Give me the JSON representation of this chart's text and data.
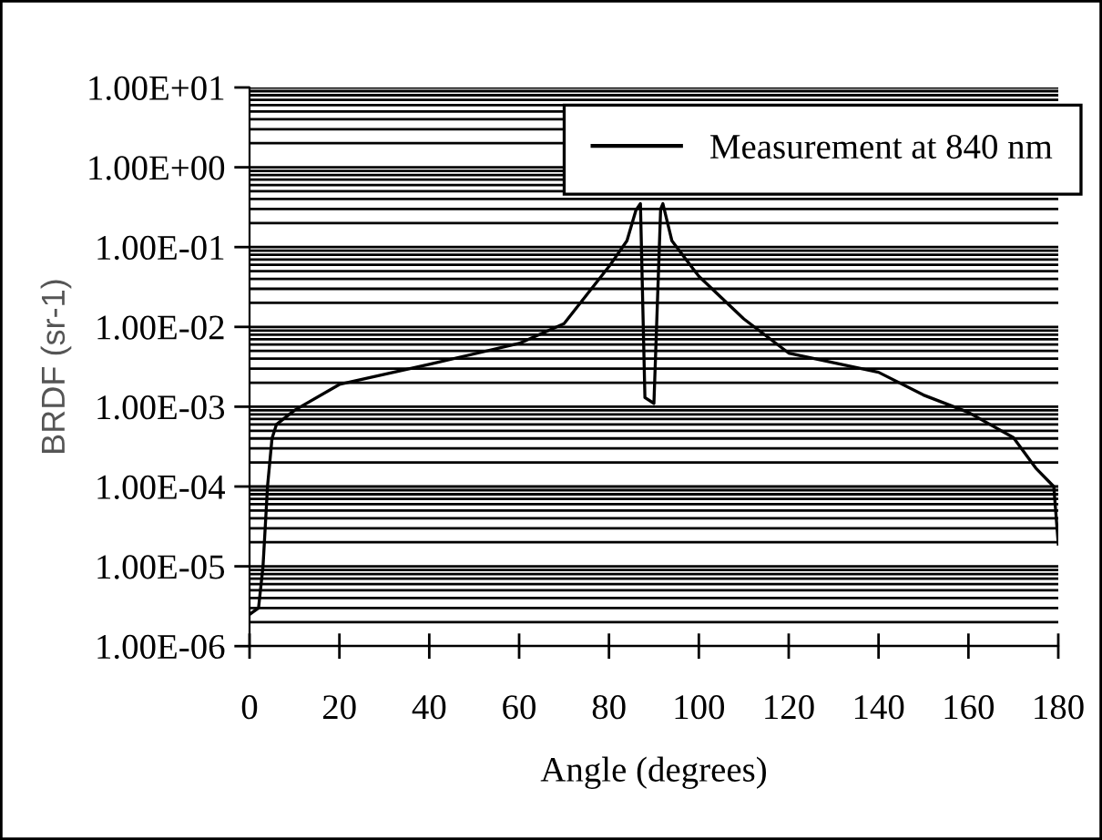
{
  "chart_data": {
    "type": "line",
    "xlabel": "Angle (degrees)",
    "ylabel": "BRDF (sr-1)",
    "log": "y",
    "grid": "y",
    "legend": "top right",
    "marker": "none",
    "line_style": "solid",
    "xlim": [
      0,
      180
    ],
    "xticks": [
      0,
      20,
      40,
      60,
      80,
      100,
      120,
      140,
      160,
      180
    ],
    "ylim": [
      1e-06,
      10
    ],
    "yticks": [
      {
        "value": 1e-06,
        "label": "1.00E-06"
      },
      {
        "value": 1e-05,
        "label": "1.00E-05"
      },
      {
        "value": 0.0001,
        "label": "1.00E-04"
      },
      {
        "value": 0.001,
        "label": "1.00E-03"
      },
      {
        "value": 0.01,
        "label": "1.00E-02"
      },
      {
        "value": 0.1,
        "label": "1.00E-01"
      },
      {
        "value": 1,
        "label": "1.00E+00"
      },
      {
        "value": 10,
        "label": "1.00E+01"
      }
    ],
    "series": [
      {
        "name": "Measurement at 840 nm",
        "color": "#000000",
        "x": [
          0,
          2,
          3,
          4,
          5,
          6,
          10,
          20,
          40,
          60,
          70,
          80,
          84,
          86,
          87,
          88,
          90,
          91.5,
          92,
          94,
          100,
          110,
          120,
          140,
          150,
          160,
          170,
          175,
          179,
          180
        ],
        "values": [
          2.5e-06,
          3e-06,
          1e-05,
          0.0001,
          0.0004,
          0.0006,
          0.0009,
          0.0019,
          0.0034,
          0.0062,
          0.011,
          0.057,
          0.12,
          0.29,
          0.35,
          0.0013,
          0.0011,
          0.3,
          0.35,
          0.12,
          0.043,
          0.0126,
          0.0047,
          0.0027,
          0.0014,
          0.00085,
          0.00041,
          0.00017,
          0.0001,
          1.9e-05
        ]
      }
    ]
  }
}
